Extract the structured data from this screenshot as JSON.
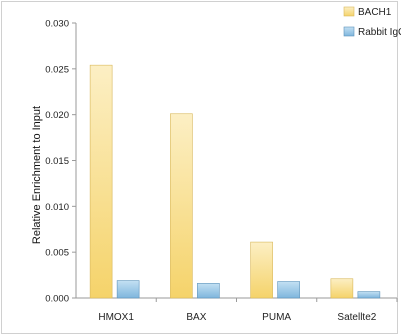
{
  "chart_data": {
    "type": "bar",
    "categories": [
      "HMOX1",
      "BAX",
      "PUMA",
      "Satellte2"
    ],
    "series": [
      {
        "name": "BACH1",
        "values": [
          0.0254,
          0.0201,
          0.0061,
          0.0021
        ],
        "color": "#f5d77a"
      },
      {
        "name": "Rabbit IgG",
        "values": [
          0.0019,
          0.0016,
          0.0018,
          0.0007
        ],
        "color": "#8fc3e6"
      }
    ],
    "title": "",
    "xlabel": "",
    "ylabel": "Relative Enrichment to Input",
    "ylim": [
      0,
      0.03
    ],
    "yticks": [
      "0.000",
      "0.005",
      "0.010",
      "0.015",
      "0.020",
      "0.025",
      "0.030"
    ],
    "legend_position": "top-right",
    "grid": false
  }
}
